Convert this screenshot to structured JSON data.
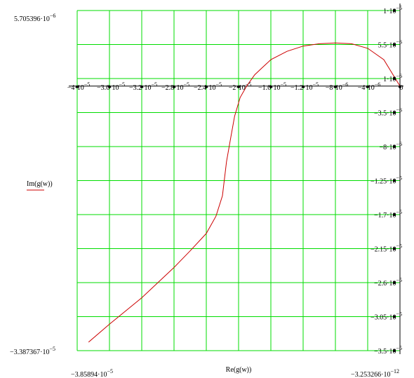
{
  "chart_data": {
    "type": "line",
    "xlabel": "Re(g(w))",
    "legend": {
      "label": "Im(g(w))",
      "color": "#cc0000",
      "placement": "left"
    },
    "grid": true,
    "colors": {
      "grid": "#00dd00",
      "series": "#cc0000",
      "text": "#000000"
    },
    "xlim": [
      -4e-05,
      0
    ],
    "ylim": [
      -3.5e-05,
      1e-05
    ],
    "corner_labels": {
      "y_top": "5.705396·10",
      "y_top_exp": "−6",
      "y_bottom": "−3.387367·10",
      "y_bottom_exp": "−5",
      "x_left": "−3.85894·10",
      "x_left_exp": "−5",
      "x_right": "−3.253266·10",
      "x_right_exp": "−12"
    },
    "x_ticks": [
      {
        "value": -4e-05,
        "mant": "−4",
        "exp": "−5"
      },
      {
        "value": -3.6e-05,
        "mant": "−3.6",
        "exp": "−5"
      },
      {
        "value": -3.2e-05,
        "mant": "−3.2",
        "exp": "−5"
      },
      {
        "value": -2.8e-05,
        "mant": "−2.8",
        "exp": "−5"
      },
      {
        "value": -2.4e-05,
        "mant": "−2.4",
        "exp": "−5"
      },
      {
        "value": -2e-05,
        "mant": "−2",
        "exp": "−5"
      },
      {
        "value": -1.6e-05,
        "mant": "−1.6",
        "exp": "−5"
      },
      {
        "value": -1.2e-05,
        "mant": "−1.2",
        "exp": "−5"
      },
      {
        "value": -8e-06,
        "mant": "−8",
        "exp": "−6"
      },
      {
        "value": -4e-06,
        "mant": "−4",
        "exp": "−6"
      },
      {
        "value": 0,
        "mant": "0",
        "exp": ""
      }
    ],
    "y_ticks": [
      {
        "value": 1e-05,
        "mant": "1",
        "exp": "−5"
      },
      {
        "value": 5.5e-06,
        "mant": "5.5",
        "exp": "−6"
      },
      {
        "value": 1e-06,
        "mant": "1",
        "exp": "−6"
      },
      {
        "value": -3.5e-06,
        "mant": "−3.5",
        "exp": "−6"
      },
      {
        "value": -8e-06,
        "mant": "−8",
        "exp": "−6"
      },
      {
        "value": -1.25e-05,
        "mant": "−1.25",
        "exp": "−5"
      },
      {
        "value": -1.7e-05,
        "mant": "−1.7",
        "exp": "−5"
      },
      {
        "value": -2.15e-05,
        "mant": "−2.15",
        "exp": "−5"
      },
      {
        "value": -2.6e-05,
        "mant": "−2.6",
        "exp": "−5"
      },
      {
        "value": -3.05e-05,
        "mant": "−3.05",
        "exp": "−5"
      },
      {
        "value": -3.5e-05,
        "mant": "−3.5",
        "exp": "−5"
      }
    ],
    "series": [
      {
        "x": [
          -3.85894e-05,
          -3.6e-05,
          -3.2e-05,
          -2.8e-05,
          -2.6e-05,
          -2.4e-05,
          -2.28e-05,
          -2.2e-05,
          -2.15e-05,
          -2.1e-05,
          -2.05e-05,
          -1.98e-05,
          -1.9e-05,
          -1.8e-05,
          -1.7e-05,
          -1.6e-05,
          -1.4e-05,
          -1.2e-05,
          -1e-05,
          -8e-06,
          -6e-06,
          -4e-06,
          -2e-06,
          -3.253266e-12
        ],
        "y": [
          -3.387367e-05,
          -3.15e-05,
          -2.8e-05,
          -2.4e-05,
          -2.18e-05,
          -1.95e-05,
          -1.72e-05,
          -1.45e-05,
          -1e-05,
          -7e-06,
          -4e-06,
          -1.5e-06,
          0.0,
          1.5e-06,
          2.5e-06,
          3.5e-06,
          4.6e-06,
          5.3e-06,
          5.6e-06,
          5.7e-06,
          5.6e-06,
          5e-06,
          3.5e-06,
          0.0
        ]
      }
    ]
  }
}
